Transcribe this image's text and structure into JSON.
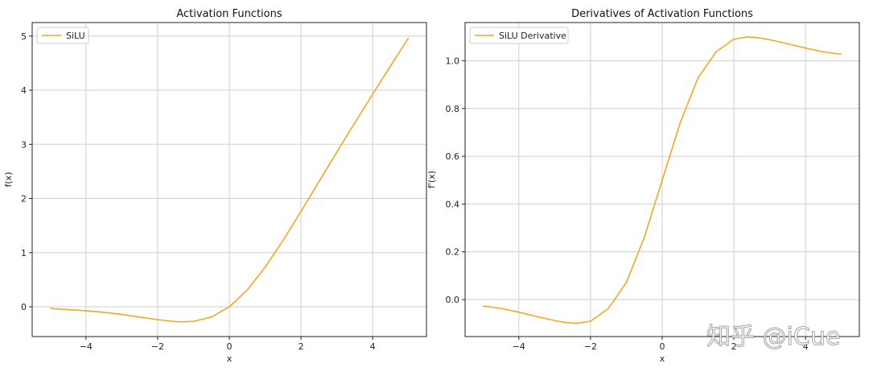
{
  "chart_data": [
    {
      "type": "line",
      "title": "Activation Functions",
      "xlabel": "x",
      "ylabel": "f(x)",
      "xlim": [
        -5.5,
        5.5
      ],
      "ylim": [
        -0.55,
        5.25
      ],
      "xticks": [
        -4,
        -2,
        0,
        2,
        4
      ],
      "xtick_labels": [
        "−4",
        "−2",
        "0",
        "2",
        "4"
      ],
      "yticks": [
        0,
        1,
        2,
        3,
        4,
        5
      ],
      "ytick_labels": [
        "0",
        "1",
        "2",
        "3",
        "4",
        "5"
      ],
      "grid": true,
      "legend_position": "top-left",
      "series": [
        {
          "name": "SiLU",
          "color": "#f5a623",
          "x": [
            -5.0,
            -4.5,
            -4.0,
            -3.5,
            -3.0,
            -2.5,
            -2.0,
            -1.5,
            -1.28,
            -1.0,
            -0.5,
            0.0,
            0.5,
            1.0,
            1.5,
            2.0,
            2.5,
            3.0,
            3.5,
            4.0,
            4.5,
            5.0
          ],
          "y": [
            -0.033,
            -0.05,
            -0.072,
            -0.102,
            -0.142,
            -0.189,
            -0.238,
            -0.274,
            -0.278,
            -0.269,
            -0.189,
            0.0,
            0.311,
            0.731,
            1.226,
            1.762,
            2.311,
            2.858,
            3.395,
            3.928,
            4.451,
            4.967
          ]
        }
      ]
    },
    {
      "type": "line",
      "title": "Derivatives of Activation Functions",
      "xlabel": "x",
      "ylabel": "f'(x)",
      "xlim": [
        -5.5,
        5.5
      ],
      "ylim": [
        -0.155,
        1.16
      ],
      "xticks": [
        -4,
        -2,
        0,
        2,
        4
      ],
      "xtick_labels": [
        "−4",
        "−2",
        "0",
        "2",
        "4"
      ],
      "yticks": [
        0.0,
        0.2,
        0.4,
        0.6,
        0.8,
        1.0
      ],
      "ytick_labels": [
        "0.0",
        "0.2",
        "0.4",
        "0.6",
        "0.8",
        "1.0"
      ],
      "grid": true,
      "legend_position": "top-left",
      "series": [
        {
          "name": "SiLU Derivative",
          "color": "#f5a623",
          "x": [
            -5.0,
            -4.5,
            -4.0,
            -3.5,
            -3.0,
            -2.75,
            -2.4,
            -2.0,
            -1.5,
            -1.0,
            -0.5,
            0.0,
            0.5,
            1.0,
            1.5,
            2.0,
            2.4,
            2.75,
            3.0,
            3.5,
            4.0,
            4.5,
            5.0
          ],
          "y": [
            -0.027,
            -0.037,
            -0.053,
            -0.071,
            -0.088,
            -0.095,
            -0.1,
            -0.091,
            -0.037,
            0.072,
            0.26,
            0.5,
            0.74,
            0.928,
            1.037,
            1.091,
            1.1,
            1.095,
            1.088,
            1.071,
            1.053,
            1.037,
            1.027
          ]
        }
      ]
    }
  ],
  "watermark": "知乎 @iCue"
}
